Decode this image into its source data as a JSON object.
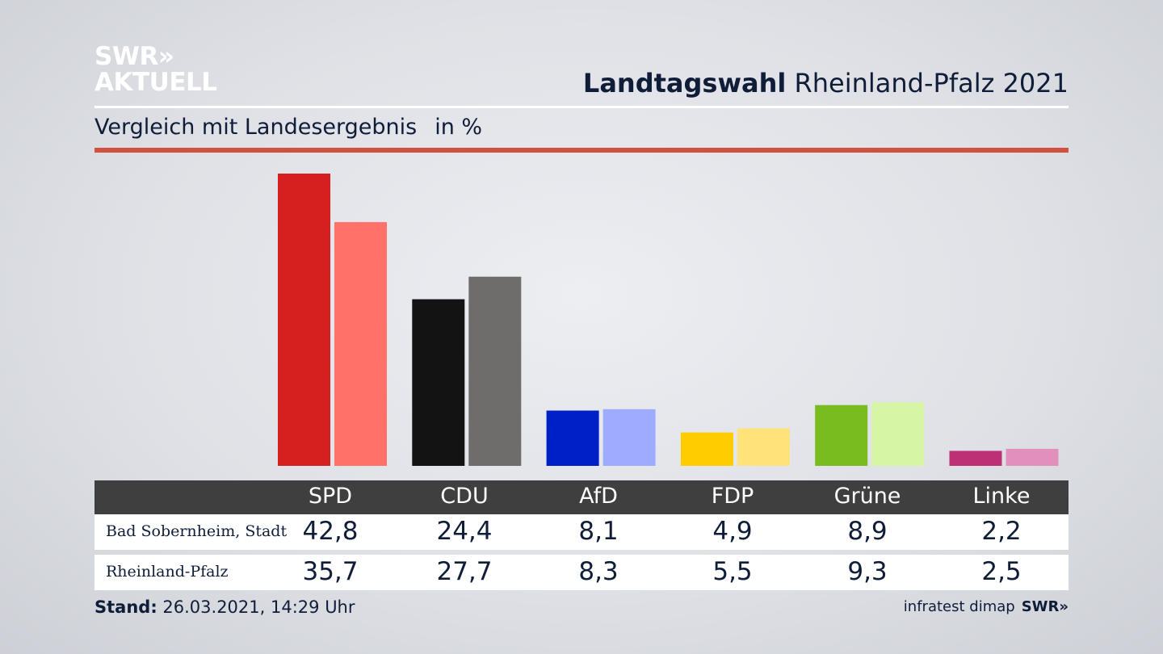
{
  "logo": {
    "line1": "SWR»",
    "line2": "AKTUELL"
  },
  "header": {
    "title_bold": "Landtagswahl",
    "title_rest": "Rheinland-Pfalz 2021"
  },
  "subtitle": {
    "text": "Vergleich mit Landesergebnis",
    "unit": "in %"
  },
  "chart_data": {
    "type": "bar",
    "categories": [
      "SPD",
      "CDU",
      "AfD",
      "FDP",
      "Grüne",
      "Linke"
    ],
    "series": [
      {
        "name": "Bad Sobernheim, Stadt",
        "values": [
          42.8,
          24.4,
          8.1,
          4.9,
          8.9,
          2.2
        ],
        "colors": [
          "#d61f1f",
          "#131313",
          "#0020c7",
          "#ffcc00",
          "#78bc1e",
          "#bd3075"
        ]
      },
      {
        "name": "Rheinland-Pfalz",
        "values": [
          35.7,
          27.7,
          8.3,
          5.5,
          9.3,
          2.5
        ],
        "colors": [
          "#ff7169",
          "#6e6d6b",
          "#9dacff",
          "#ffe27a",
          "#d6f6a6",
          "#e28fbe"
        ]
      }
    ],
    "ylim": [
      0,
      42.8
    ],
    "grid": false,
    "legend": "table-below"
  },
  "table": {
    "headers": [
      "SPD",
      "CDU",
      "AfD",
      "FDP",
      "Grüne",
      "Linke"
    ],
    "rows": [
      {
        "label": "Bad Sobernheim, Stadt",
        "values": [
          "42,8",
          "24,4",
          "8,1",
          "4,9",
          "8,9",
          "2,2"
        ]
      },
      {
        "label": "Rheinland-Pfalz",
        "values": [
          "35,7",
          "27,7",
          "8,3",
          "5,5",
          "9,3",
          "2,5"
        ]
      }
    ]
  },
  "footer": {
    "stand_label": "Stand:",
    "stand_value": "26.03.2021, 14:29 Uhr",
    "source": "infratest dimap",
    "brand": "SWR»"
  }
}
